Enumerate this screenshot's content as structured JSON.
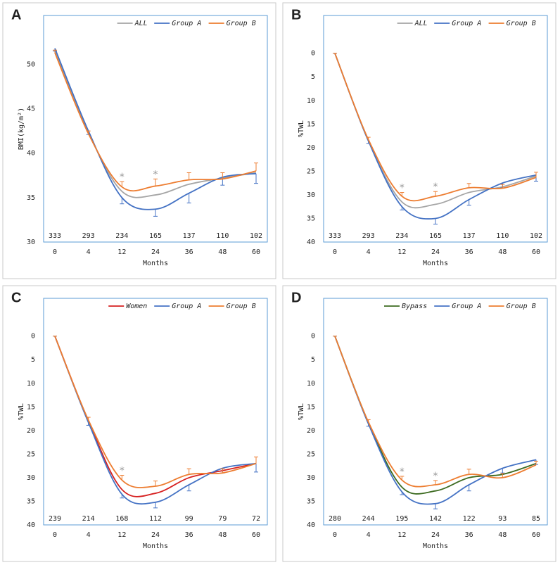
{
  "chart_data": [
    {
      "type": "line",
      "label": "A",
      "x_label": "Months",
      "y_label": "BMI(kg/m²)",
      "categories": [
        "0",
        "4",
        "12",
        "24",
        "36",
        "48",
        "60"
      ],
      "ylim": [
        30,
        55.5
      ],
      "yticks": [
        30,
        35,
        40,
        45,
        50
      ],
      "y_inverted": false,
      "legend": "top-right",
      "n": [
        333,
        293,
        234,
        165,
        137,
        110,
        102
      ],
      "annotations": [
        {
          "category": "12",
          "text": "*"
        },
        {
          "category": "24",
          "text": "*"
        }
      ],
      "series": [
        {
          "name": "ALL",
          "color": "#a5a5a5",
          "values": [
            51.5,
            42.3,
            35.7,
            35.3,
            36.5,
            37.2,
            37.8
          ]
        },
        {
          "name": "Group A",
          "color": "#4472c4",
          "values": [
            51.8,
            42.5,
            35.0,
            33.7,
            35.5,
            37.3,
            37.7
          ],
          "errors": [
            0.3,
            0.4,
            0.7,
            0.8,
            1.1,
            0.9,
            1.1
          ],
          "error_side": "minus"
        },
        {
          "name": "Group B",
          "color": "#ed7d31",
          "values": [
            51.3,
            42.2,
            36.2,
            36.3,
            37.0,
            37.1,
            38.0
          ],
          "errors": [
            0.3,
            0.3,
            0.6,
            0.8,
            0.8,
            0.7,
            0.9
          ],
          "error_side": "plus"
        }
      ]
    },
    {
      "type": "line",
      "label": "B",
      "x_label": "Months",
      "y_label": "%TWL",
      "categories": [
        "0",
        "4",
        "12",
        "24",
        "36",
        "48",
        "60"
      ],
      "ylim": [
        -8,
        40
      ],
      "yticks": [
        0,
        5,
        10,
        15,
        20,
        25,
        30,
        35,
        40
      ],
      "y_inverted": true,
      "legend": "top-right",
      "n": [
        333,
        293,
        234,
        165,
        137,
        110,
        102
      ],
      "annotations": [
        {
          "category": "12",
          "text": "*"
        },
        {
          "category": "24",
          "text": "*"
        }
      ],
      "series": [
        {
          "name": "ALL",
          "color": "#a5a5a5",
          "values": [
            0,
            18.5,
            31.5,
            32.0,
            29.5,
            28.3,
            26.0
          ]
        },
        {
          "name": "Group A",
          "color": "#4472c4",
          "values": [
            0,
            18.6,
            32.5,
            35.0,
            31.0,
            27.5,
            25.8
          ],
          "errors": [
            0,
            0.5,
            0.7,
            1.2,
            1.2,
            1.0,
            1.3
          ],
          "error_side": "plus"
        },
        {
          "name": "Group B",
          "color": "#ed7d31",
          "values": [
            0,
            18.3,
            30.3,
            30.3,
            28.5,
            28.6,
            26.3
          ],
          "errors": [
            0,
            0.5,
            0.8,
            1.0,
            0.9,
            0.8,
            1.1
          ],
          "error_side": "minus"
        }
      ]
    },
    {
      "type": "line",
      "label": "C",
      "x_label": "Months",
      "y_label": "%TWL",
      "categories": [
        "0",
        "4",
        "12",
        "24",
        "36",
        "48",
        "60"
      ],
      "ylim": [
        -8,
        40
      ],
      "yticks": [
        0,
        5,
        10,
        15,
        20,
        25,
        30,
        35,
        40
      ],
      "y_inverted": true,
      "legend": "top-right",
      "n": [
        239,
        214,
        168,
        112,
        99,
        79,
        72
      ],
      "annotations": [
        {
          "category": "12",
          "text": "*"
        }
      ],
      "series": [
        {
          "name": "Women",
          "color": "#d62020",
          "values": [
            0,
            18.0,
            32.5,
            33.3,
            30.0,
            28.5,
            27.0
          ]
        },
        {
          "name": "Group A",
          "color": "#4472c4",
          "values": [
            0,
            18.3,
            33.5,
            35.2,
            31.5,
            28.0,
            27.0
          ],
          "errors": [
            0,
            0.6,
            0.8,
            1.2,
            1.3,
            1.0,
            1.8
          ],
          "error_side": "plus"
        },
        {
          "name": "Group B",
          "color": "#ed7d31",
          "values": [
            0,
            17.8,
            30.5,
            31.8,
            29.3,
            29.0,
            27.0
          ],
          "errors": [
            0,
            0.6,
            1.0,
            1.1,
            1.2,
            0.9,
            1.4
          ],
          "error_side": "minus"
        }
      ]
    },
    {
      "type": "line",
      "label": "D",
      "x_label": "Months",
      "y_label": "%TWL",
      "categories": [
        "0",
        "4",
        "12",
        "24",
        "36",
        "48",
        "60"
      ],
      "ylim": [
        -8,
        40
      ],
      "yticks": [
        0,
        5,
        10,
        15,
        20,
        25,
        30,
        35,
        40
      ],
      "y_inverted": true,
      "legend": "top-right",
      "n": [
        280,
        244,
        195,
        142,
        122,
        93,
        85
      ],
      "annotations": [
        {
          "category": "12",
          "text": "*"
        },
        {
          "category": "24",
          "text": "*"
        }
      ],
      "series": [
        {
          "name": "Bypass",
          "color": "#3d6b21",
          "values": [
            0,
            18.3,
            32.0,
            32.8,
            30.0,
            29.3,
            27.0
          ]
        },
        {
          "name": "Group A",
          "color": "#4472c4",
          "values": [
            0,
            18.6,
            33.0,
            35.5,
            31.5,
            28.0,
            26.2
          ],
          "errors": [
            0,
            0.5,
            0.6,
            1.1,
            1.3,
            1.0,
            1.0
          ],
          "error_side": "plus"
        },
        {
          "name": "Group B",
          "color": "#ed7d31",
          "values": [
            0,
            18.2,
            30.5,
            31.5,
            29.3,
            30.0,
            27.3
          ],
          "errors": [
            0,
            0.5,
            0.8,
            0.9,
            1.1,
            0.9,
            0.8
          ],
          "error_side": "minus"
        }
      ]
    }
  ]
}
